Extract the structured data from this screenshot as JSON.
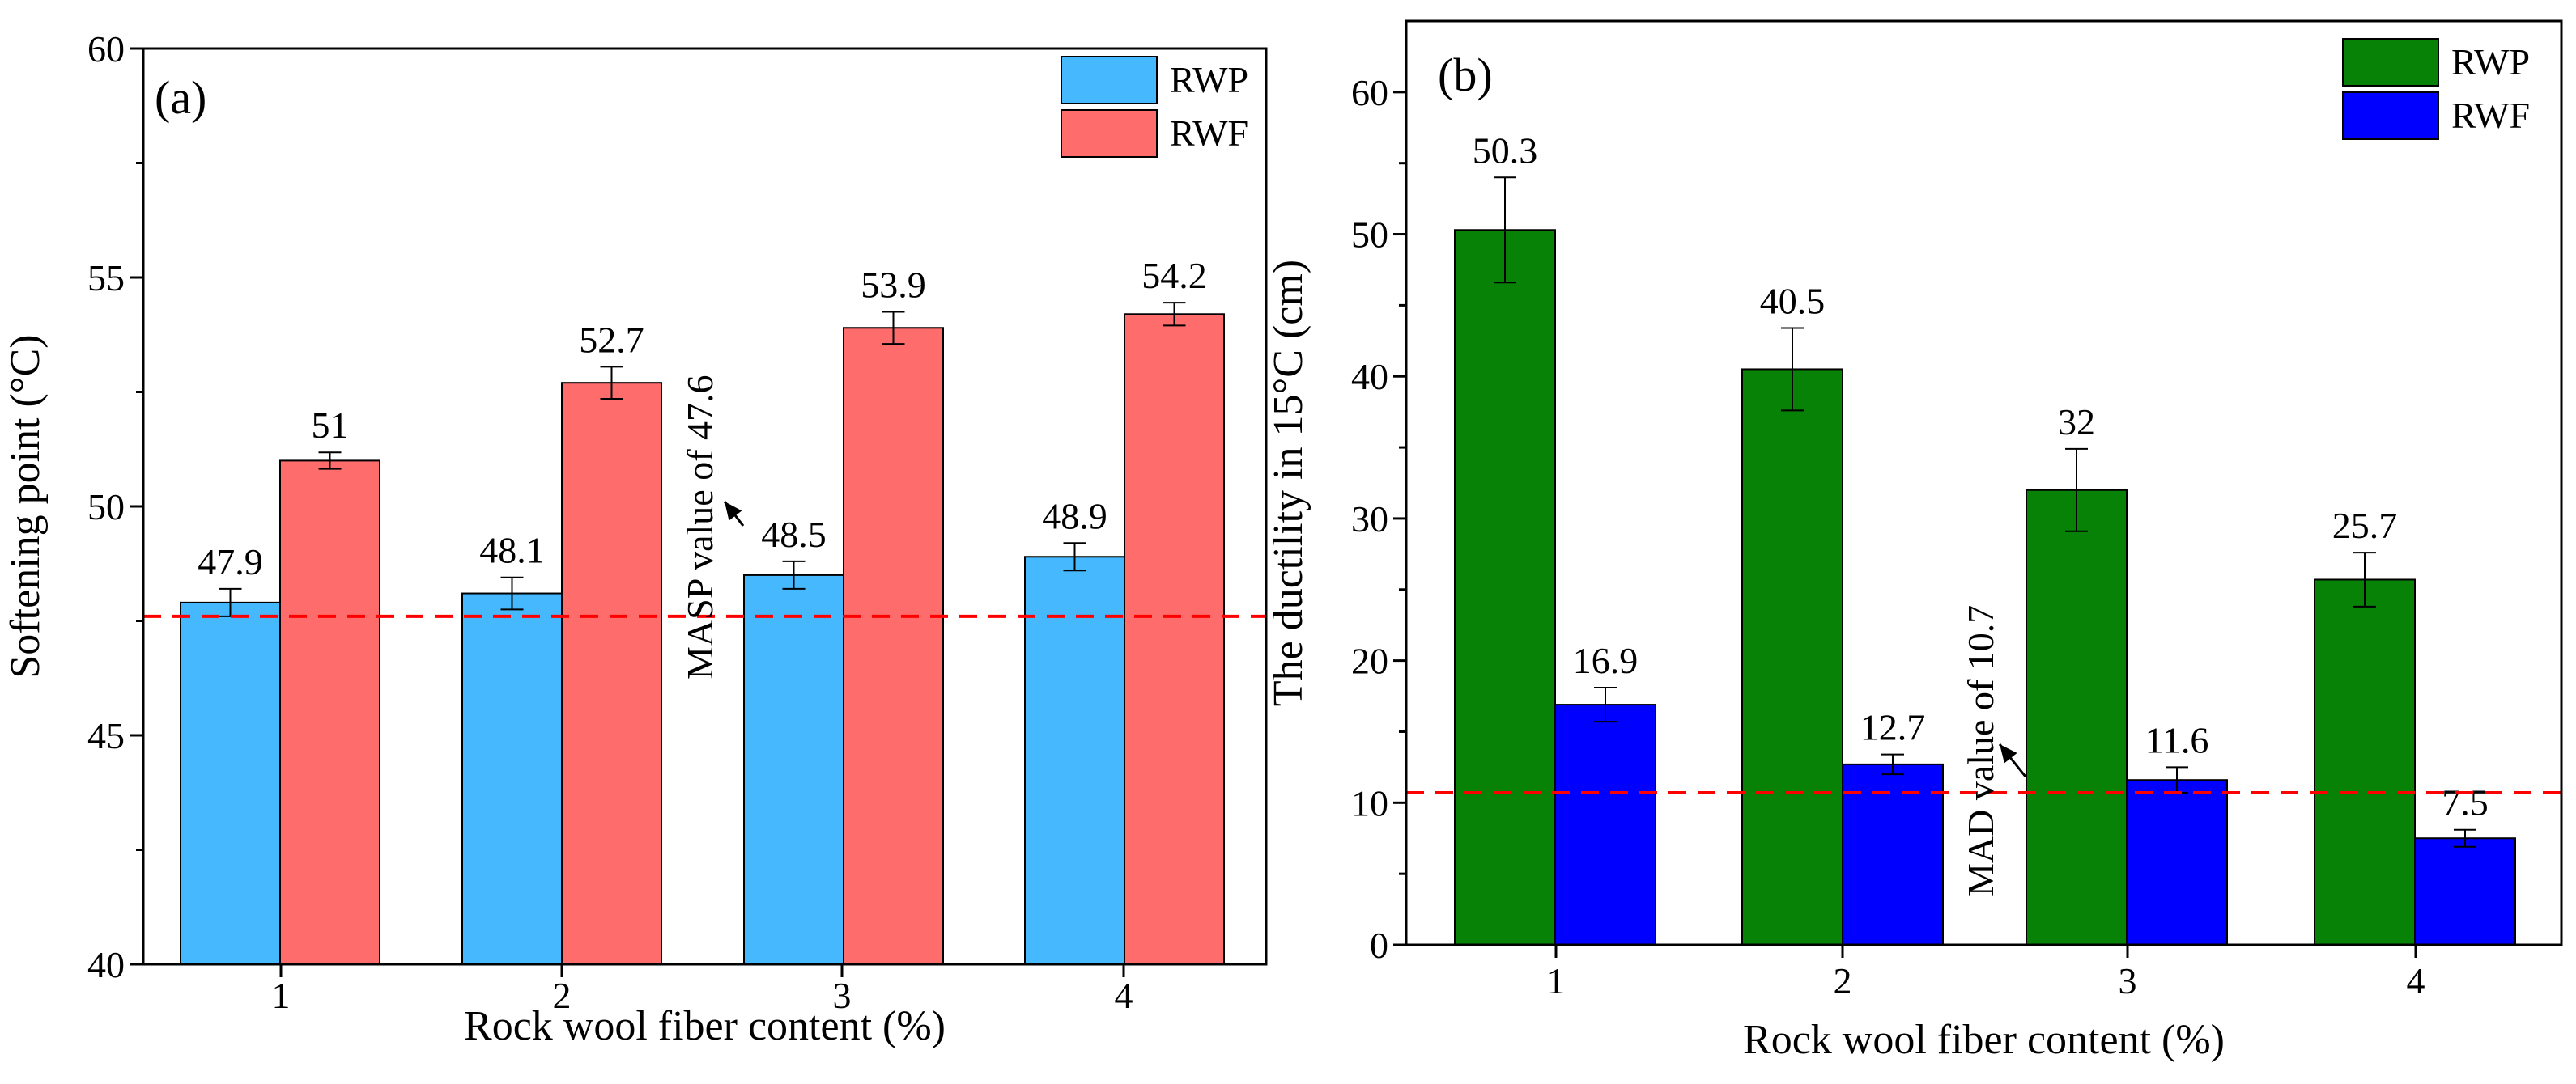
{
  "chart_data": [
    {
      "type": "bar",
      "panel_label": "(a)",
      "categories": [
        "1",
        "2",
        "3",
        "4"
      ],
      "xlabel": "Rock wool fiber content (%)",
      "ylabel": "Softening point (°C)",
      "ylim": [
        40,
        60
      ],
      "yticks": [
        "40",
        "45",
        "50",
        "55",
        "60"
      ],
      "series": [
        {
          "name": "RWP",
          "values": [
            47.9,
            48.1,
            48.5,
            48.9
          ],
          "errors": [
            0.3,
            0.35,
            0.3,
            0.3
          ],
          "labels": [
            "47.9",
            "48.1",
            "48.5",
            "48.9"
          ],
          "color": "#45b8fe"
        },
        {
          "name": "RWF",
          "values": [
            51,
            52.7,
            53.9,
            54.2
          ],
          "errors": [
            0.18,
            0.35,
            0.35,
            0.25
          ],
          "labels": [
            "51",
            "52.7",
            "53.9",
            "54.2"
          ],
          "color": "#ff6c6c"
        }
      ],
      "reference_line": {
        "value": 47.6,
        "label": "MASP value of 47.6",
        "color": "#ff0000"
      },
      "legend": "top-right",
      "grid": false
    },
    {
      "type": "bar",
      "panel_label": "(b)",
      "categories": [
        "1",
        "2",
        "3",
        "4"
      ],
      "xlabel": "Rock wool fiber content (%)",
      "ylabel": "The ductility in 15°C (cm)",
      "ylim": [
        0,
        65
      ],
      "yticks": [
        "0",
        "10",
        "20",
        "30",
        "40",
        "50",
        "60"
      ],
      "series": [
        {
          "name": "RWP",
          "values": [
            50.3,
            40.5,
            32,
            25.7
          ],
          "errors": [
            3.7,
            2.9,
            2.9,
            1.9
          ],
          "labels": [
            "50.3",
            "40.5",
            "32",
            "25.7"
          ],
          "color": "#078207"
        },
        {
          "name": "RWF",
          "values": [
            16.9,
            12.7,
            11.6,
            7.5
          ],
          "errors": [
            1.2,
            0.7,
            0.9,
            0.6
          ],
          "labels": [
            "16.9",
            "12.7",
            "11.6",
            "7.5"
          ],
          "color": "#0000fe"
        }
      ],
      "reference_line": {
        "value": 10.7,
        "label": "MAD value of 10.7",
        "color": "#ff0000"
      },
      "legend": "top-right",
      "grid": false
    }
  ]
}
